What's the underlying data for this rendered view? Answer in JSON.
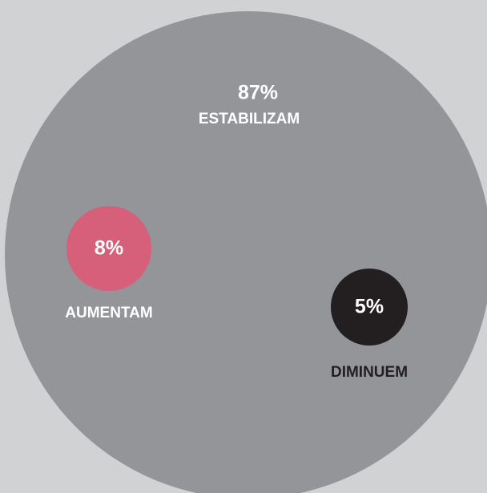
{
  "chart_data": {
    "type": "bubble",
    "categories": [
      "ESTABILIZAM",
      "AUMENTAM",
      "DIMINUEM"
    ],
    "values": [
      87,
      8,
      5
    ],
    "value_labels": [
      "87%",
      "8%",
      "5%"
    ],
    "colors": [
      "#939598",
      "#d6607a",
      "#231f20"
    ]
  }
}
